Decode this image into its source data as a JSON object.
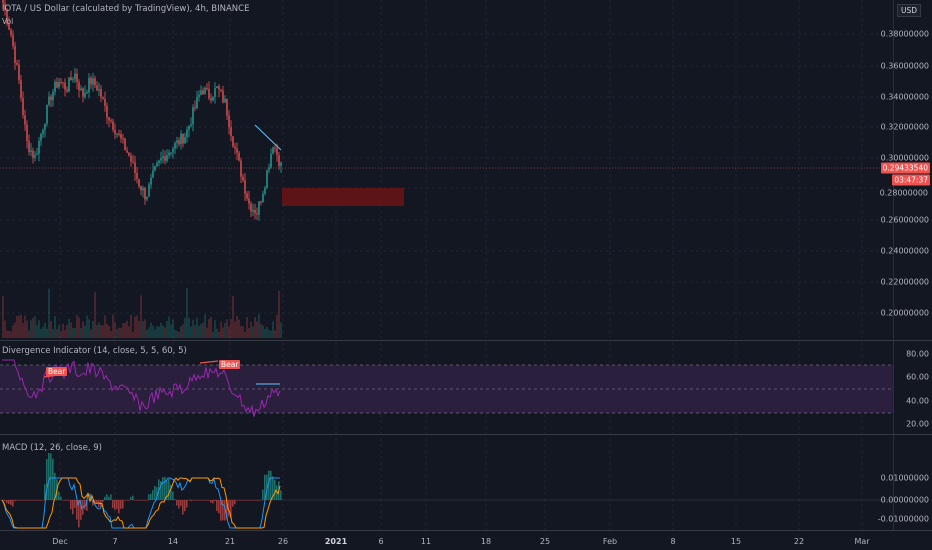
{
  "header": {
    "symbol_title": "IOTA / US Dollar (calculated by TradingView), 4h, BINANCE",
    "volume_label": "Vol",
    "currency_label": "USD"
  },
  "price_axis": {
    "ticks": [
      "0.38000000",
      "0.36000000",
      "0.34000000",
      "0.32000000",
      "0.30000000",
      "0.28000000",
      "0.26000000",
      "0.24000000",
      "0.22000000",
      "0.20000000"
    ],
    "last_price": "0.29433540",
    "countdown": "03:47:37"
  },
  "rsi_pane": {
    "title": "Divergence Indicator (14, close, 5, 5, 60, 5)",
    "ticks": [
      "80.00",
      "60.00",
      "40.00",
      "20.00"
    ],
    "bear_labels": [
      "Bear",
      "Bear"
    ]
  },
  "macd_pane": {
    "title": "MACD (12, 26, close, 9)",
    "ticks": [
      "0.01000000",
      "0.00000000",
      "-0.01000000"
    ]
  },
  "time_axis": {
    "labels": [
      {
        "text": "Dec",
        "bold": false
      },
      {
        "text": "7",
        "bold": false
      },
      {
        "text": "14",
        "bold": false
      },
      {
        "text": "21",
        "bold": false
      },
      {
        "text": "26",
        "bold": false
      },
      {
        "text": "2021",
        "bold": true
      },
      {
        "text": "6",
        "bold": false
      },
      {
        "text": "11",
        "bold": false
      },
      {
        "text": "18",
        "bold": false
      },
      {
        "text": "25",
        "bold": false
      },
      {
        "text": "Feb",
        "bold": false
      },
      {
        "text": "8",
        "bold": false
      },
      {
        "text": "15",
        "bold": false
      },
      {
        "text": "22",
        "bold": false
      },
      {
        "text": "Mar",
        "bold": false
      }
    ]
  },
  "colors": {
    "background": "#131722",
    "up": "#26a69a",
    "down": "#ef5350",
    "rsi_line": "#9c27b0",
    "rsi_band": "#2a1f3d",
    "macd_line": "#2196f3",
    "signal_line": "#ff9800",
    "zone": "#6b1414"
  }
}
